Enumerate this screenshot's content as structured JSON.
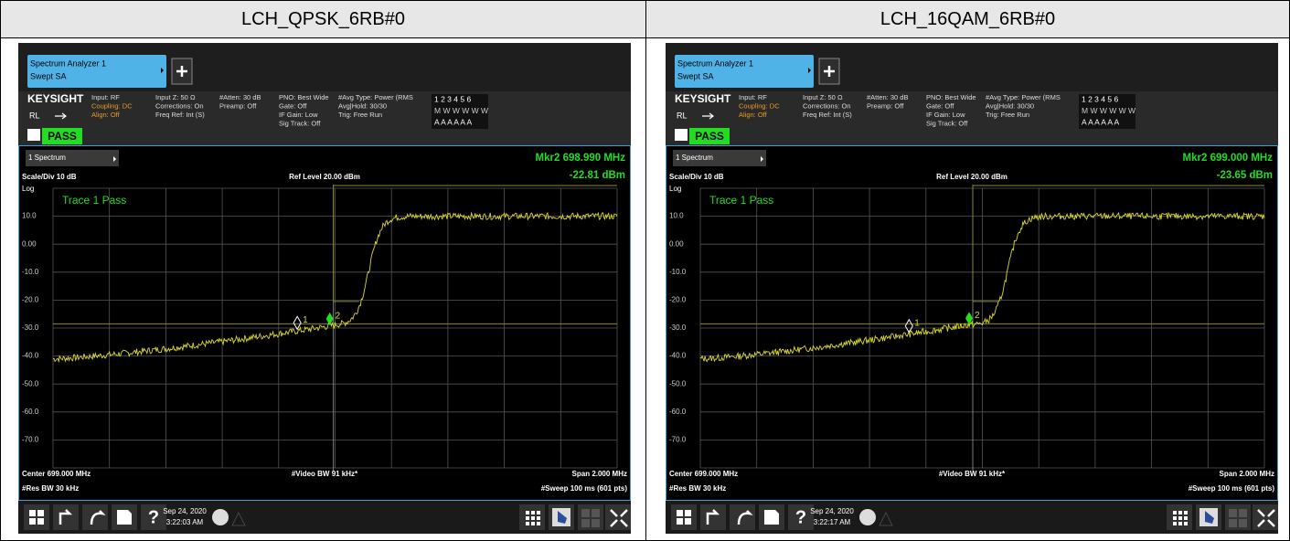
{
  "header": {
    "cells": [
      "LCH_QPSK_6RB#0",
      "LCH_16QAM_6RB#0"
    ]
  },
  "panels": [
    {
      "tab_title": "Spectrum Analyzer 1",
      "tab_subtitle": "Swept SA",
      "brand": "KEYSIGHT",
      "rl": "RL",
      "status": "PASS",
      "settings": [
        [
          "Input: RF",
          "Coupling: DC",
          "Align: Off"
        ],
        [
          "Input Z: 50 Ω",
          "Corrections: On",
          "Freq Ref: Int (S)"
        ],
        [
          "#Atten: 30 dB",
          "Preamp: Off"
        ],
        [
          "PNO: Best Wide",
          "Gate: Off",
          "IF Gain: Low",
          "Sig Track: Off"
        ],
        [
          "#Avg Type: Power (RMS",
          "Avg|Hold: 30/30",
          "Trig: Free Run"
        ]
      ],
      "trace_rows": [
        "1 2 3 4 5 6",
        "M W W W W W",
        "A A A A A A"
      ],
      "view": "1 Spectrum",
      "marker_freq": "Mkr2  698.990 MHz",
      "marker_value": "-22.81 dBm",
      "scale": "Scale/Div 10 dB",
      "ref_level": "Ref Level 20.00 dBm",
      "log": "Log",
      "y_labels": [
        "10.0",
        "0.00",
        "-10.0",
        "-20.0",
        "-30.0",
        "-40.0",
        "-50.0",
        "-60.0",
        "-70.0"
      ],
      "trace_label": "Trace 1 Pass",
      "marker_labels": [
        "1",
        "2"
      ],
      "center": "Center 699.000 MHz",
      "res_bw": "#Res BW 30 kHz",
      "video_bw": "#Video BW 91 kHz*",
      "span": "Span 2.000 MHz",
      "sweep": "#Sweep 100 ms (601 pts)",
      "help": "?",
      "date": "Sep 24, 2020",
      "time": "3:22:03 AM"
    },
    {
      "tab_title": "Spectrum Analyzer 1",
      "tab_subtitle": "Swept SA",
      "brand": "KEYSIGHT",
      "rl": "RL",
      "status": "PASS",
      "settings": [
        [
          "Input: RF",
          "Coupling: DC",
          "Align: Off"
        ],
        [
          "Input Z: 50 Ω",
          "Corrections: On",
          "Freq Ref: Int (S)"
        ],
        [
          "#Atten: 30 dB",
          "Preamp: Off"
        ],
        [
          "PNO: Best Wide",
          "Gate: Off",
          "IF Gain: Low",
          "Sig Track: Off"
        ],
        [
          "#Avg Type: Power (RMS",
          "Avg|Hold: 30/30",
          "Trig: Free Run"
        ]
      ],
      "trace_rows": [
        "1 2 3 4 5 6",
        "M W W W W W",
        "A A A A A A"
      ],
      "view": "1 Spectrum",
      "marker_freq": "Mkr2  699.000 MHz",
      "marker_value": "-23.65 dBm",
      "scale": "Scale/Div 10 dB",
      "ref_level": "Ref Level 20.00 dBm",
      "log": "Log",
      "y_labels": [
        "10.0",
        "0.00",
        "-10.0",
        "-20.0",
        "-30.0",
        "-40.0",
        "-50.0",
        "-60.0",
        "-70.0"
      ],
      "trace_label": "Trace 1 Pass",
      "marker_labels": [
        "1",
        "2"
      ],
      "center": "Center 699.000 MHz",
      "res_bw": "#Res BW 30 kHz",
      "video_bw": "#Video BW 91 kHz*",
      "span": "Span 2.000 MHz",
      "sweep": "#Sweep 100 ms (601 pts)",
      "help": "?",
      "date": "Sep 24, 2020",
      "time": "3:22:17 AM"
    }
  ]
}
